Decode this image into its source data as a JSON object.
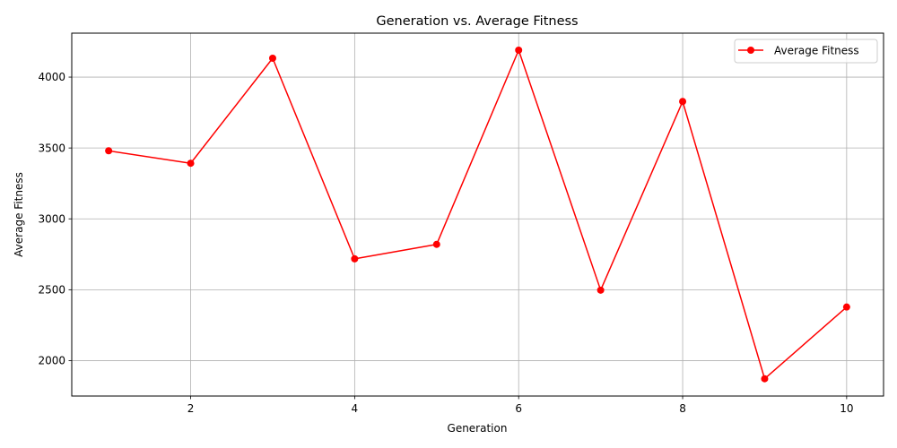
{
  "chart_data": {
    "type": "line",
    "title": "Generation vs. Average Fitness",
    "xlabel": "Generation",
    "ylabel": "Average Fitness",
    "xlim": [
      0.55,
      10.45
    ],
    "ylim": [
      1750,
      4310
    ],
    "xticks": [
      2,
      4,
      6,
      8,
      10
    ],
    "yticks": [
      2000,
      2500,
      3000,
      3500,
      4000
    ],
    "grid": true,
    "legend": "top-right",
    "series": [
      {
        "name": "Average Fitness",
        "color": "#ff0000",
        "marker": "circle",
        "x": [
          1,
          2,
          3,
          4,
          5,
          6,
          7,
          8,
          9,
          10
        ],
        "y": [
          3480,
          3392,
          4133,
          2718,
          2820,
          4190,
          2497,
          3828,
          1872,
          2378
        ]
      }
    ]
  }
}
